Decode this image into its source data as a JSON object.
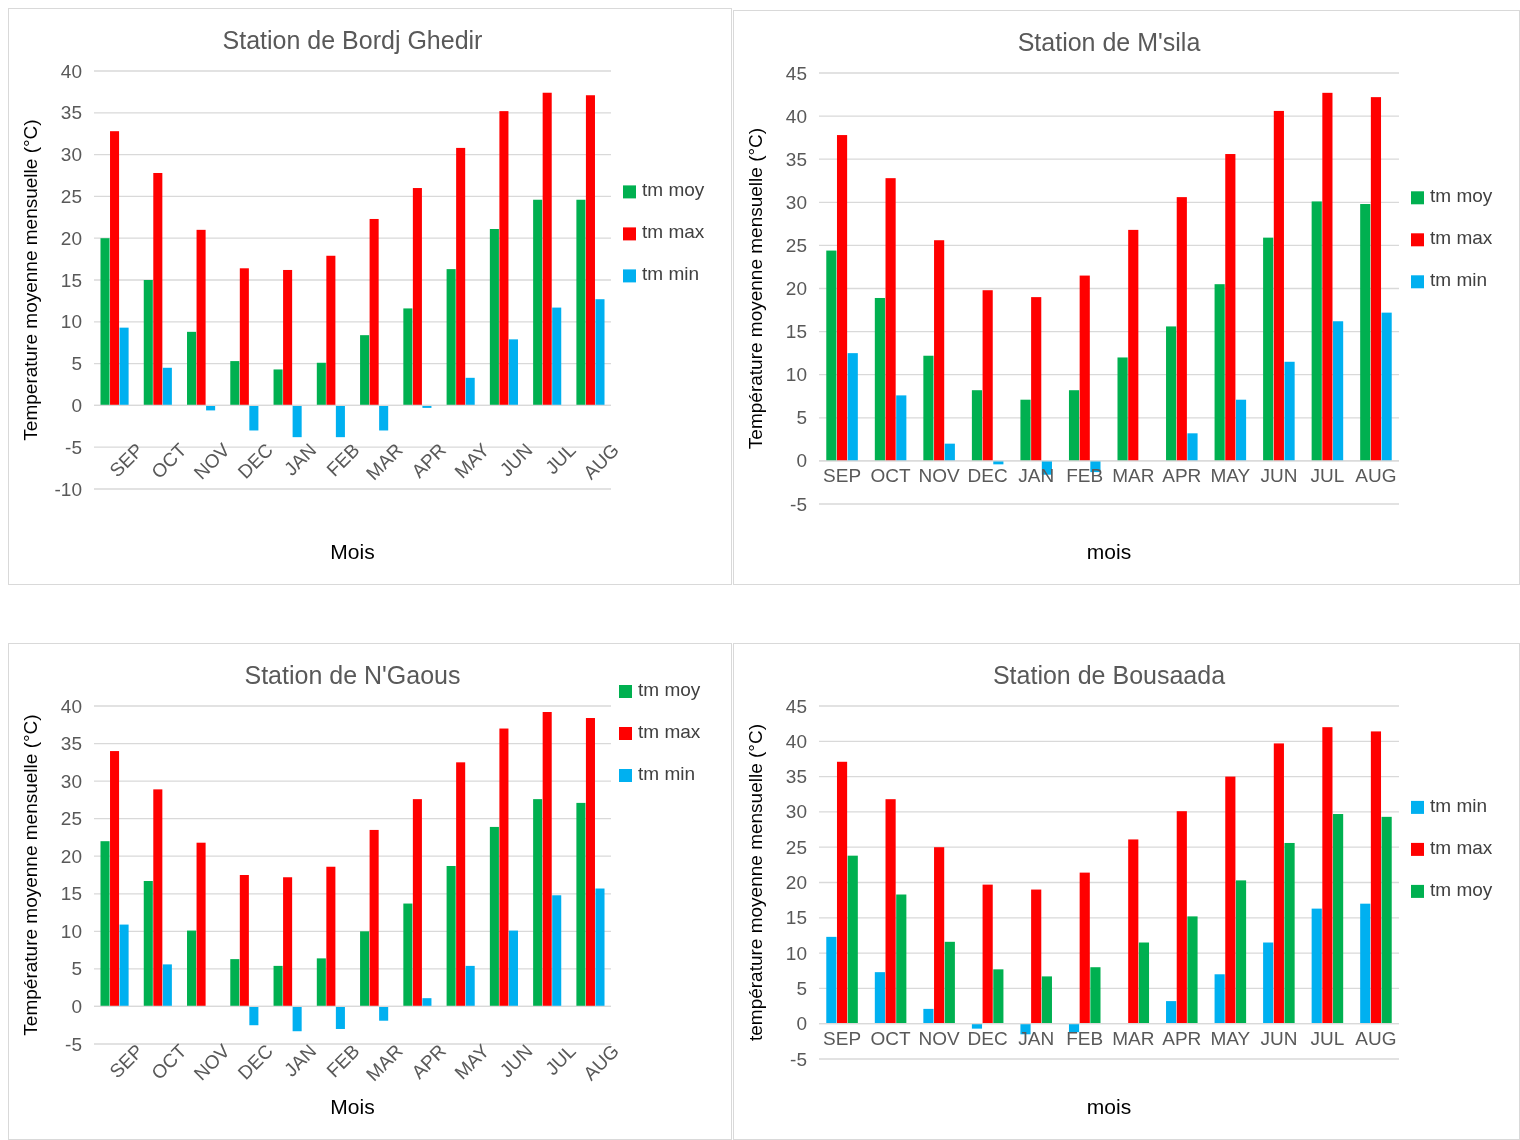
{
  "chart_data": [
    {
      "type": "bar",
      "title": "Station de Bordj Ghedir",
      "xlabel": "Mois",
      "ylabel": "Temperature moyenne mensuelle (°C)",
      "categories": [
        "SEP",
        "OCT",
        "NOV",
        "DEC",
        "JAN",
        "FEB",
        "MAR",
        "APR",
        "MAY",
        "JUN",
        "JUL",
        "AUG"
      ],
      "ylim": [
        -10,
        40
      ],
      "yticks": [
        -10,
        -5,
        0,
        5,
        10,
        15,
        20,
        25,
        30,
        35,
        40
      ],
      "grid": "y",
      "legend": "right",
      "series": [
        {
          "name": "tm moy",
          "color": "#00b050",
          "values": [
            20.0,
            15.0,
            8.8,
            5.3,
            4.3,
            5.1,
            8.4,
            11.6,
            16.3,
            21.1,
            24.6,
            24.6
          ]
        },
        {
          "name": "tm max",
          "color": "#ff0000",
          "values": [
            32.8,
            27.8,
            21.0,
            16.4,
            16.2,
            17.9,
            22.3,
            26.0,
            30.8,
            35.2,
            37.4,
            37.1
          ]
        },
        {
          "name": "tm min",
          "color": "#00b0f0",
          "values": [
            9.3,
            4.5,
            -0.6,
            -3.0,
            -3.8,
            -3.8,
            -3.0,
            -0.3,
            3.3,
            7.9,
            11.7,
            12.7
          ]
        }
      ]
    },
    {
      "type": "bar",
      "title": "Station de M'sila",
      "xlabel": "mois",
      "ylabel": "Température moyenne mensuelle (°C)",
      "categories": [
        "SEP",
        "OCT",
        "NOV",
        "DEC",
        "JAN",
        "FEB",
        "MAR",
        "APR",
        "MAY",
        "JUN",
        "JUL",
        "AUG"
      ],
      "ylim": [
        -5,
        45
      ],
      "yticks": [
        -5,
        0,
        5,
        10,
        15,
        20,
        25,
        30,
        35,
        40,
        45
      ],
      "grid": "y",
      "legend": "right",
      "series": [
        {
          "name": "tm moy",
          "color": "#00b050",
          "values": [
            24.4,
            18.9,
            12.2,
            8.2,
            7.1,
            8.2,
            12.0,
            15.6,
            20.5,
            25.9,
            30.1,
            29.8
          ]
        },
        {
          "name": "tm max",
          "color": "#ff0000",
          "values": [
            37.8,
            32.8,
            25.6,
            19.8,
            19.0,
            21.5,
            26.8,
            30.6,
            35.6,
            40.6,
            42.7,
            42.2
          ]
        },
        {
          "name": "tm min",
          "color": "#00b0f0",
          "values": [
            12.5,
            7.6,
            2.0,
            -0.4,
            -1.6,
            -1.3,
            null,
            3.2,
            7.1,
            11.5,
            16.2,
            17.2
          ]
        }
      ]
    },
    {
      "type": "bar",
      "title": "Station de N'Gaous",
      "xlabel": "Mois",
      "ylabel": "Température moyenne mensuelle (°C)",
      "categories": [
        "SEP",
        "OCT",
        "NOV",
        "DEC",
        "JAN",
        "FEB",
        "MAR",
        "APR",
        "MAY",
        "JUN",
        "JUL",
        "AUG"
      ],
      "ylim": [
        -5,
        40
      ],
      "yticks": [
        -5,
        0,
        5,
        10,
        15,
        20,
        25,
        30,
        35,
        40
      ],
      "grid": "y",
      "legend": "top right",
      "series": [
        {
          "name": "tm moy",
          "color": "#00b050",
          "values": [
            22.0,
            16.7,
            10.1,
            6.3,
            5.4,
            6.4,
            10.0,
            13.7,
            18.7,
            23.9,
            27.6,
            27.1
          ]
        },
        {
          "name": "tm max",
          "color": "#ff0000",
          "values": [
            34.0,
            28.9,
            21.8,
            17.5,
            17.2,
            18.6,
            23.5,
            27.6,
            32.5,
            37.0,
            39.2,
            38.4
          ]
        },
        {
          "name": "tm min",
          "color": "#00b0f0",
          "values": [
            10.9,
            5.6,
            null,
            -2.5,
            -3.3,
            -3.0,
            -1.9,
            1.1,
            5.4,
            10.1,
            14.8,
            15.7
          ]
        }
      ]
    },
    {
      "type": "bar",
      "title": "Station de Bousaada",
      "xlabel": "mois",
      "ylabel": "température moyenne mensuelle (°C)",
      "categories": [
        "SEP",
        "OCT",
        "NOV",
        "DEC",
        "JAN",
        "FEB",
        "MAR",
        "APR",
        "MAY",
        "JUN",
        "JUL",
        "AUG"
      ],
      "ylim": [
        -5,
        45
      ],
      "yticks": [
        -5,
        0,
        5,
        10,
        15,
        20,
        25,
        30,
        35,
        40,
        45
      ],
      "grid": "y",
      "legend": "right",
      "series": [
        {
          "name": "tm min",
          "color": "#00b0f0",
          "values": [
            12.3,
            7.3,
            2.1,
            -0.7,
            -1.5,
            -1.2,
            null,
            3.2,
            7.0,
            11.5,
            16.3,
            17.0
          ]
        },
        {
          "name": "tm max",
          "color": "#ff0000",
          "values": [
            37.1,
            31.8,
            25.0,
            19.7,
            19.0,
            21.4,
            26.1,
            30.1,
            35.0,
            39.7,
            42.0,
            41.4
          ]
        },
        {
          "name": "tm moy",
          "color": "#00b050",
          "values": [
            23.8,
            18.3,
            11.6,
            7.7,
            6.7,
            8.0,
            11.5,
            15.2,
            20.3,
            25.6,
            29.7,
            29.3
          ]
        }
      ]
    }
  ]
}
